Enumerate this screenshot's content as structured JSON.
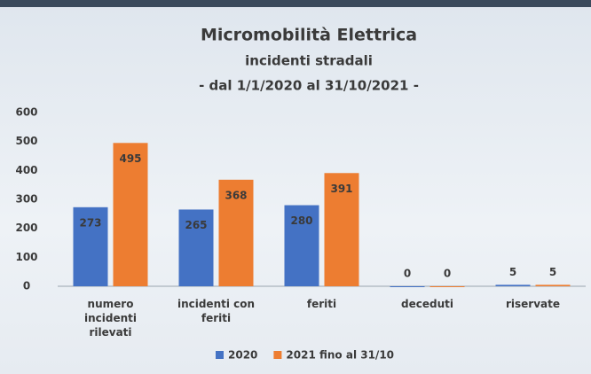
{
  "chart_data": {
    "type": "bar",
    "title": "Micromobilità Elettrica",
    "subtitle": [
      "incidenti stradali",
      "- dal 1/1/2020 al 31/10/2021 -"
    ],
    "categories": [
      "numero incidenti rilevati",
      "incidenti con feriti",
      "feriti",
      "deceduti",
      "riservate"
    ],
    "series": [
      {
        "name": "2020",
        "color": "#4472c4",
        "values": [
          273,
          265,
          280,
          0,
          5
        ]
      },
      {
        "name": "2021 fino al 31/10",
        "color": "#ed7d31",
        "values": [
          495,
          368,
          391,
          0,
          5
        ]
      }
    ],
    "ylim": [
      0,
      600
    ],
    "yticks": [
      0,
      100,
      200,
      300,
      400,
      500,
      600
    ],
    "grid": false,
    "legend": "bottom"
  }
}
